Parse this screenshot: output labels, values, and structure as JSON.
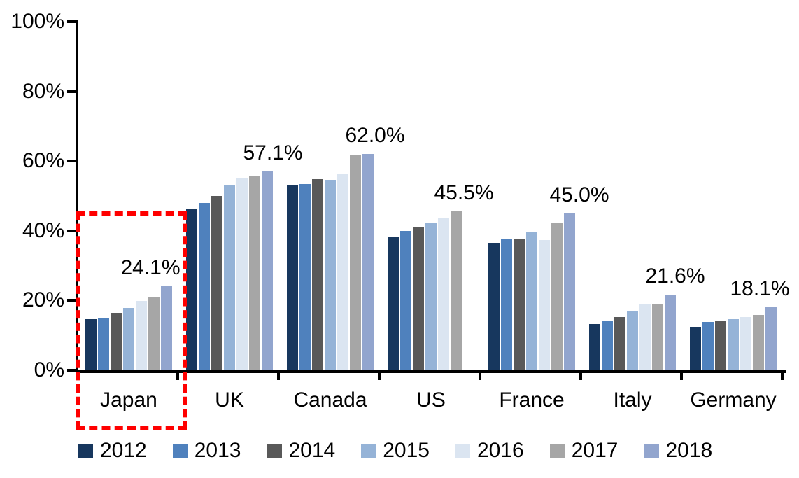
{
  "chart_data": {
    "type": "bar",
    "title": "",
    "categories": [
      "Japan",
      "UK",
      "Canada",
      "US",
      "France",
      "Italy",
      "Germany"
    ],
    "series": [
      {
        "name": "2012",
        "color": "#17375E",
        "values": [
          14.6,
          46.4,
          53.0,
          38.3,
          36.5,
          13.2,
          12.5
        ]
      },
      {
        "name": "2013",
        "color": "#4F81BD",
        "values": [
          14.9,
          47.9,
          53.5,
          40.0,
          37.6,
          14.1,
          13.9
        ]
      },
      {
        "name": "2014",
        "color": "#595959",
        "values": [
          16.5,
          50.1,
          54.9,
          41.2,
          37.6,
          15.3,
          14.3
        ]
      },
      {
        "name": "2015",
        "color": "#95B3D7",
        "values": [
          17.9,
          53.3,
          54.7,
          42.2,
          39.5,
          16.8,
          14.7
        ]
      },
      {
        "name": "2016",
        "color": "#DBE5F1",
        "values": [
          19.9,
          55.0,
          56.2,
          43.6,
          37.4,
          18.9,
          15.3
        ]
      },
      {
        "name": "2017",
        "color": "#A6A6A6",
        "values": [
          21.0,
          55.8,
          61.7,
          45.5,
          42.4,
          19.1,
          15.8
        ]
      },
      {
        "name": "2018",
        "color": "#92A5CE",
        "values": [
          24.1,
          57.1,
          62.0,
          null,
          45.0,
          21.6,
          18.1
        ]
      }
    ],
    "annotations": [
      {
        "category": "Japan",
        "text": "24.1%"
      },
      {
        "category": "UK",
        "text": "57.1%"
      },
      {
        "category": "Canada",
        "text": "62.0%"
      },
      {
        "category": "US",
        "text": "45.5%"
      },
      {
        "category": "France",
        "text": "45.0%"
      },
      {
        "category": "Italy",
        "text": "21.6%"
      },
      {
        "category": "Germany",
        "text": "18.1%"
      }
    ],
    "axis": {
      "y_ticks": [
        {
          "label": "100%",
          "value": 100
        },
        {
          "label": "80%",
          "value": 80
        },
        {
          "label": "60%",
          "value": 60
        },
        {
          "label": "40%",
          "value": 40
        },
        {
          "label": "20%",
          "value": 20
        },
        {
          "label": "0%",
          "value": 0
        }
      ],
      "ylim": [
        0,
        100
      ],
      "grid": false
    },
    "legend": {
      "position": "bottom"
    },
    "highlight_box": {
      "category": "Japan",
      "color": "#FF0000",
      "style": "dashed"
    },
    "layout": {
      "annotation_x_offsets": [
        103,
        134,
        136,
        119,
        140,
        133,
        110
      ],
      "annotation_gap_above_bar": 44
    }
  }
}
